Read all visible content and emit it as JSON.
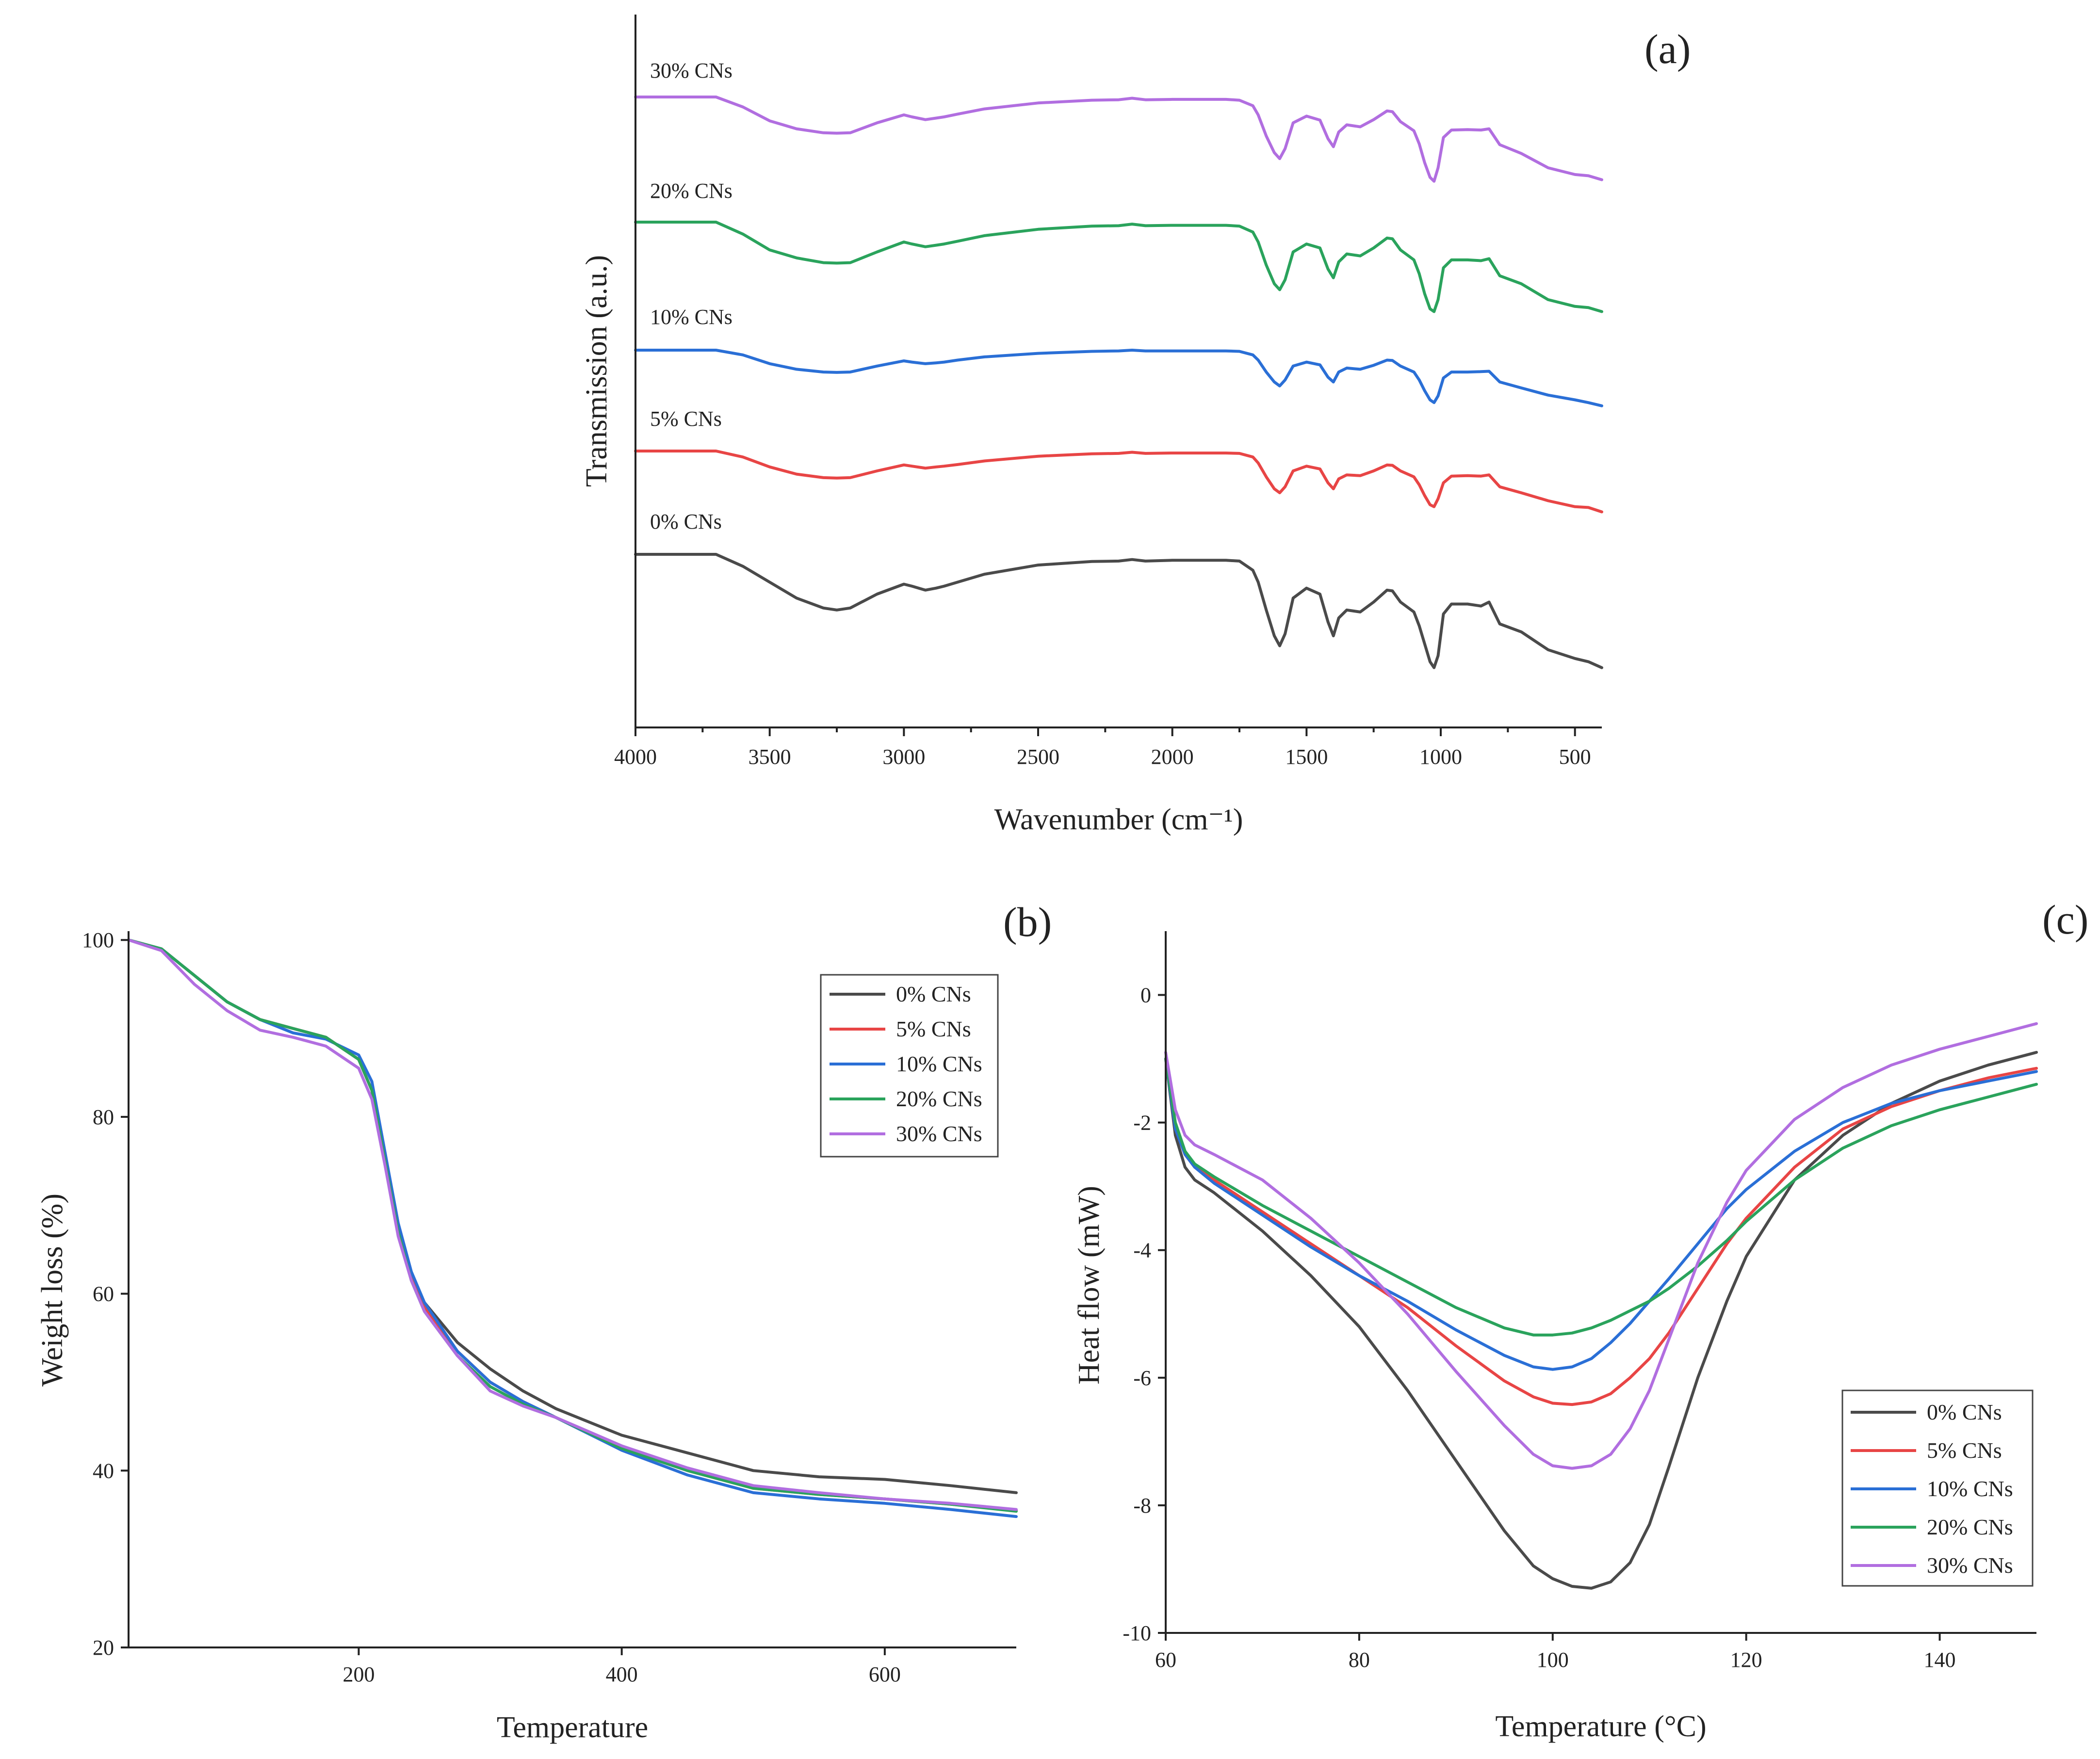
{
  "chart_data": [
    {
      "panel": "(a)",
      "type": "line",
      "title": "",
      "xlabel": "Wavenumber (cm⁻¹)",
      "ylabel": "Transmission (a.u.)",
      "xlim": [
        4000,
        400
      ],
      "xticks": [
        4000,
        3500,
        3000,
        2500,
        2000,
        1500,
        1000,
        500
      ],
      "x": [
        4000,
        3700,
        3600,
        3500,
        3400,
        3300,
        3250,
        3200,
        3100,
        3000,
        2970,
        2920,
        2880,
        2850,
        2800,
        2700,
        2500,
        2300,
        2200,
        2150,
        2100,
        2000,
        1900,
        1800,
        1750,
        1700,
        1680,
        1650,
        1620,
        1600,
        1580,
        1550,
        1500,
        1450,
        1420,
        1400,
        1380,
        1350,
        1300,
        1250,
        1200,
        1180,
        1150,
        1100,
        1080,
        1060,
        1040,
        1025,
        1010,
        990,
        960,
        900,
        850,
        820,
        780,
        700,
        600,
        500,
        450,
        400
      ],
      "y_units": "offset transmission (a.u.), larger = higher on plot",
      "series": [
        {
          "name": "0% CNs",
          "label": "0% CNs",
          "color": "#4a4a4a",
          "values": [
            3.0,
            3.0,
            2.7,
            2.3,
            1.9,
            1.65,
            1.6,
            1.65,
            2.0,
            2.25,
            2.2,
            2.1,
            2.15,
            2.2,
            2.3,
            2.5,
            2.73,
            2.82,
            2.83,
            2.87,
            2.83,
            2.85,
            2.85,
            2.85,
            2.83,
            2.6,
            2.3,
            1.6,
            0.95,
            0.7,
            1.0,
            1.9,
            2.15,
            2.0,
            1.3,
            0.95,
            1.4,
            1.6,
            1.55,
            1.8,
            2.1,
            2.08,
            1.8,
            1.55,
            1.2,
            0.75,
            0.3,
            0.15,
            0.45,
            1.5,
            1.75,
            1.75,
            1.7,
            1.8,
            1.25,
            1.05,
            0.6,
            0.38,
            0.3,
            0.15
          ]
        },
        {
          "name": "5% CNs",
          "label": "5% CNs",
          "color": "#e84545",
          "values": [
            3.0,
            3.0,
            2.85,
            2.6,
            2.42,
            2.33,
            2.32,
            2.33,
            2.5,
            2.65,
            2.62,
            2.57,
            2.6,
            2.62,
            2.66,
            2.75,
            2.87,
            2.93,
            2.94,
            2.97,
            2.94,
            2.95,
            2.95,
            2.95,
            2.94,
            2.85,
            2.7,
            2.35,
            2.05,
            1.95,
            2.1,
            2.5,
            2.62,
            2.55,
            2.2,
            2.05,
            2.3,
            2.4,
            2.38,
            2.5,
            2.65,
            2.64,
            2.5,
            2.35,
            2.15,
            1.88,
            1.65,
            1.6,
            1.8,
            2.2,
            2.37,
            2.38,
            2.37,
            2.4,
            2.1,
            1.95,
            1.75,
            1.6,
            1.58,
            1.47
          ]
        },
        {
          "name": "10% CNs",
          "label": "10% CNs",
          "color": "#2a6fd6",
          "values": [
            3.0,
            3.0,
            2.88,
            2.66,
            2.52,
            2.45,
            2.44,
            2.45,
            2.6,
            2.73,
            2.7,
            2.66,
            2.68,
            2.7,
            2.75,
            2.83,
            2.92,
            2.97,
            2.98,
            3.0,
            2.98,
            2.98,
            2.98,
            2.98,
            2.97,
            2.88,
            2.75,
            2.45,
            2.2,
            2.1,
            2.25,
            2.6,
            2.7,
            2.63,
            2.32,
            2.2,
            2.45,
            2.55,
            2.52,
            2.62,
            2.75,
            2.74,
            2.6,
            2.45,
            2.25,
            1.98,
            1.75,
            1.68,
            1.85,
            2.3,
            2.45,
            2.45,
            2.46,
            2.47,
            2.2,
            2.05,
            1.87,
            1.75,
            1.68,
            1.6
          ]
        },
        {
          "name": "20% CNs",
          "label": "20% CNs",
          "color": "#2aa35c",
          "values": [
            3.0,
            3.0,
            2.7,
            2.3,
            2.1,
            1.98,
            1.97,
            1.98,
            2.25,
            2.5,
            2.45,
            2.38,
            2.42,
            2.45,
            2.52,
            2.66,
            2.82,
            2.9,
            2.91,
            2.95,
            2.91,
            2.92,
            2.92,
            2.92,
            2.9,
            2.75,
            2.5,
            1.92,
            1.45,
            1.3,
            1.55,
            2.25,
            2.45,
            2.35,
            1.82,
            1.6,
            2.0,
            2.2,
            2.15,
            2.35,
            2.6,
            2.58,
            2.3,
            2.05,
            1.7,
            1.2,
            0.82,
            0.75,
            1.05,
            1.85,
            2.05,
            2.05,
            2.03,
            2.08,
            1.65,
            1.45,
            1.05,
            0.88,
            0.85,
            0.75
          ]
        },
        {
          "name": "30% CNs",
          "label": "30% CNs",
          "color": "#b16ee0",
          "values": [
            3.0,
            3.0,
            2.75,
            2.4,
            2.2,
            2.1,
            2.09,
            2.1,
            2.35,
            2.55,
            2.5,
            2.43,
            2.47,
            2.5,
            2.57,
            2.7,
            2.85,
            2.92,
            2.93,
            2.97,
            2.93,
            2.94,
            2.94,
            2.94,
            2.92,
            2.78,
            2.55,
            2.02,
            1.6,
            1.45,
            1.7,
            2.35,
            2.52,
            2.42,
            1.95,
            1.75,
            2.12,
            2.3,
            2.25,
            2.43,
            2.65,
            2.63,
            2.38,
            2.15,
            1.82,
            1.35,
            0.98,
            0.88,
            1.22,
            1.98,
            2.17,
            2.18,
            2.17,
            2.2,
            1.8,
            1.58,
            1.22,
            1.05,
            1.02,
            0.92
          ]
        }
      ]
    },
    {
      "panel": "(b)",
      "type": "line",
      "title": "",
      "xlabel": "Temperature",
      "ylabel": "Weight loss (%)",
      "xlim": [
        25,
        700
      ],
      "ylim": [
        20,
        101
      ],
      "xticks": [
        200,
        400,
        600
      ],
      "yticks": [
        20,
        40,
        60,
        80,
        100
      ],
      "x": [
        25,
        50,
        75,
        100,
        125,
        150,
        175,
        200,
        210,
        220,
        230,
        240,
        250,
        275,
        300,
        325,
        350,
        400,
        450,
        500,
        550,
        600,
        650,
        700
      ],
      "series": [
        {
          "name": "0% CNs",
          "color": "#4a4a4a",
          "values": [
            100,
            99,
            96,
            93,
            91,
            90,
            89,
            86.5,
            83,
            75,
            67,
            62,
            59,
            54.5,
            51.5,
            49,
            47,
            44,
            42,
            40,
            39.3,
            39,
            38.3,
            37.5
          ]
        },
        {
          "name": "5% CNs",
          "color": "#e84545",
          "values": [
            100,
            99,
            96,
            93,
            91,
            90,
            89,
            86.5,
            83,
            75,
            67,
            62,
            58.5,
            53.5,
            50,
            47.8,
            46,
            42.5,
            40,
            38,
            37.3,
            36.8,
            36.2,
            35.5
          ]
        },
        {
          "name": "10% CNs",
          "color": "#2a6fd6",
          "values": [
            100,
            99,
            96,
            93,
            91,
            89.5,
            88.8,
            87,
            84,
            76,
            68,
            62.5,
            59,
            53.5,
            50,
            47.8,
            46,
            42.3,
            39.5,
            37.5,
            36.8,
            36.3,
            35.6,
            34.8
          ]
        },
        {
          "name": "20% CNs",
          "color": "#2aa35c",
          "values": [
            100,
            99,
            96,
            93,
            91,
            90,
            89,
            86.5,
            83,
            75,
            67,
            61.5,
            58,
            53,
            49.5,
            47.5,
            46,
            42.5,
            40,
            38,
            37.3,
            36.8,
            36.2,
            35.4
          ]
        },
        {
          "name": "30% CNs",
          "color": "#b16ee0",
          "values": [
            100,
            98.8,
            95,
            92,
            89.8,
            89,
            88,
            85.5,
            82,
            74.5,
            66.5,
            61.5,
            58,
            53,
            49,
            47.3,
            46,
            42.8,
            40.3,
            38.3,
            37.5,
            36.8,
            36.3,
            35.6
          ]
        }
      ]
    },
    {
      "panel": "(c)",
      "type": "line",
      "title": "",
      "xlabel": "Temperature (°C)",
      "ylabel": "Heat flow (mW)",
      "xlim": [
        60,
        150
      ],
      "ylim": [
        -10,
        1
      ],
      "xticks": [
        60,
        80,
        100,
        120,
        140
      ],
      "yticks": [
        -10,
        -8,
        -6,
        -4,
        -2,
        0
      ],
      "x": [
        60,
        61,
        62,
        63,
        65,
        70,
        75,
        80,
        85,
        90,
        95,
        98,
        100,
        102,
        104,
        106,
        108,
        110,
        112,
        115,
        118,
        120,
        125,
        130,
        135,
        140,
        145,
        150
      ],
      "series": [
        {
          "name": "0% CNs",
          "color": "#4a4a4a",
          "values": [
            -1.0,
            -2.2,
            -2.7,
            -2.9,
            -3.1,
            -3.7,
            -4.4,
            -5.2,
            -6.2,
            -7.3,
            -8.4,
            -8.95,
            -9.15,
            -9.27,
            -9.3,
            -9.2,
            -8.9,
            -8.3,
            -7.4,
            -6.0,
            -4.8,
            -4.1,
            -2.9,
            -2.2,
            -1.7,
            -1.35,
            -1.1,
            -0.9
          ]
        },
        {
          "name": "5% CNs",
          "color": "#e84545",
          "values": [
            -1.0,
            -2.1,
            -2.5,
            -2.7,
            -2.9,
            -3.4,
            -3.9,
            -4.4,
            -4.9,
            -5.5,
            -6.05,
            -6.3,
            -6.4,
            -6.42,
            -6.38,
            -6.25,
            -6.0,
            -5.7,
            -5.3,
            -4.6,
            -3.9,
            -3.5,
            -2.7,
            -2.1,
            -1.75,
            -1.5,
            -1.3,
            -1.15
          ]
        },
        {
          "name": "10% CNs",
          "color": "#2a6fd6",
          "values": [
            -1.0,
            -2.1,
            -2.5,
            -2.7,
            -2.95,
            -3.45,
            -3.95,
            -4.4,
            -4.8,
            -5.25,
            -5.65,
            -5.83,
            -5.87,
            -5.83,
            -5.7,
            -5.45,
            -5.15,
            -4.8,
            -4.45,
            -3.9,
            -3.35,
            -3.05,
            -2.45,
            -2.0,
            -1.7,
            -1.5,
            -1.35,
            -1.2
          ]
        },
        {
          "name": "20% CNs",
          "color": "#2aa35c",
          "values": [
            -1.0,
            -2.0,
            -2.45,
            -2.65,
            -2.85,
            -3.3,
            -3.7,
            -4.1,
            -4.5,
            -4.9,
            -5.22,
            -5.33,
            -5.33,
            -5.3,
            -5.22,
            -5.1,
            -4.95,
            -4.8,
            -4.6,
            -4.25,
            -3.85,
            -3.55,
            -2.9,
            -2.4,
            -2.05,
            -1.8,
            -1.6,
            -1.4
          ]
        },
        {
          "name": "30% CNs",
          "color": "#b16ee0",
          "values": [
            -0.9,
            -1.8,
            -2.2,
            -2.35,
            -2.5,
            -2.9,
            -3.5,
            -4.2,
            -5.0,
            -5.9,
            -6.75,
            -7.2,
            -7.38,
            -7.42,
            -7.38,
            -7.2,
            -6.8,
            -6.2,
            -5.4,
            -4.2,
            -3.25,
            -2.75,
            -1.95,
            -1.45,
            -1.1,
            -0.85,
            -0.65,
            -0.45
          ]
        }
      ]
    }
  ]
}
